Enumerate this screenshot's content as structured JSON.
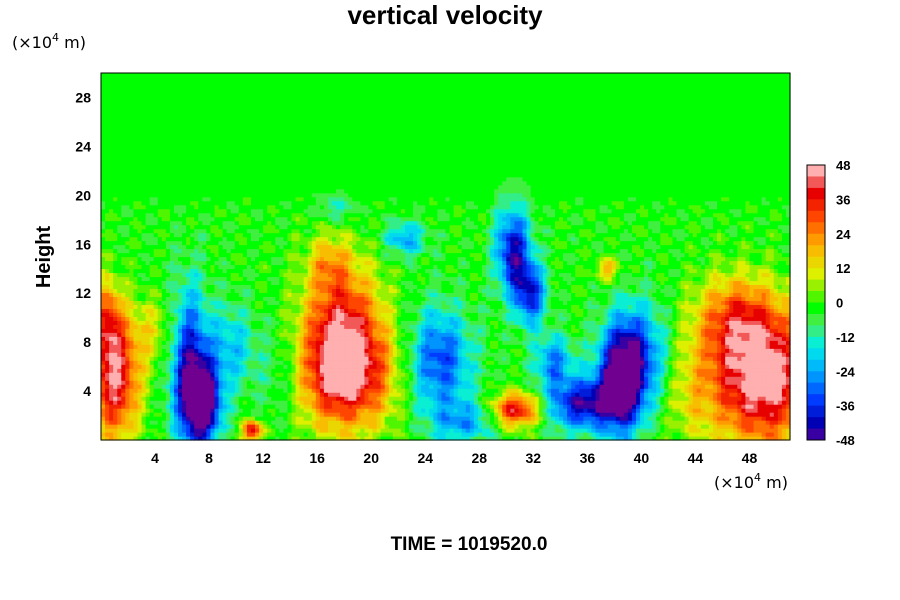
{
  "chart_data": {
    "type": "heatmap",
    "title": "vertical velocity",
    "ylabel": "Height",
    "y_unit": {
      "prefix": "(×10",
      "exponent": "4",
      "suffix": " m)"
    },
    "x_unit": {
      "prefix": "(×10",
      "exponent": "4",
      "suffix": " m)"
    },
    "xlim": [
      0,
      51
    ],
    "ylim": [
      0,
      30
    ],
    "x_ticks": [
      4,
      8,
      12,
      16,
      20,
      24,
      28,
      32,
      36,
      40,
      44,
      48
    ],
    "y_ticks": [
      4,
      8,
      12,
      16,
      20,
      24,
      28
    ],
    "colorbar": {
      "min": -48,
      "max": 48,
      "labels": [
        48,
        36,
        24,
        12,
        0,
        -12,
        -24,
        -36,
        -48
      ]
    },
    "features": [
      {
        "x": 1.0,
        "y": 5.0,
        "sx": 1.3,
        "sy": 3.5,
        "amp": 45
      },
      {
        "x": 0.5,
        "y": 10.0,
        "sx": 0.7,
        "sy": 2.2,
        "amp": 25
      },
      {
        "x": 6.5,
        "y": 6.0,
        "sx": 1.0,
        "sy": 4.5,
        "amp": -40
      },
      {
        "x": 7.6,
        "y": 3.0,
        "sx": 0.9,
        "sy": 2.2,
        "amp": -52
      },
      {
        "x": 9.5,
        "y": 7.5,
        "sx": 1.3,
        "sy": 2.5,
        "amp": -18
      },
      {
        "x": 11.2,
        "y": 0.8,
        "sx": 0.5,
        "sy": 0.6,
        "amp": 45
      },
      {
        "x": 18.0,
        "y": 5.5,
        "sx": 2.6,
        "sy": 3.2,
        "amp": 48
      },
      {
        "x": 17.8,
        "y": 10.5,
        "sx": 2.0,
        "sy": 3.5,
        "amp": 28
      },
      {
        "x": 16.8,
        "y": 14.5,
        "sx": 1.0,
        "sy": 1.5,
        "amp": 14
      },
      {
        "x": 25.0,
        "y": 6.5,
        "sx": 1.7,
        "sy": 3.0,
        "amp": -32
      },
      {
        "x": 22.5,
        "y": 16.5,
        "sx": 1.1,
        "sy": 1.0,
        "amp": -22
      },
      {
        "x": 17.5,
        "y": 19.0,
        "sx": 1.0,
        "sy": 0.8,
        "amp": -12
      },
      {
        "x": 30.7,
        "y": 2.5,
        "sx": 1.3,
        "sy": 1.0,
        "amp": 42
      },
      {
        "x": 30.5,
        "y": 15.5,
        "sx": 0.9,
        "sy": 2.5,
        "amp": -40
      },
      {
        "x": 31.8,
        "y": 12.0,
        "sx": 0.8,
        "sy": 1.8,
        "amp": -35
      },
      {
        "x": 33.5,
        "y": 6.5,
        "sx": 1.0,
        "sy": 1.5,
        "amp": -25
      },
      {
        "x": 35.5,
        "y": 3.0,
        "sx": 1.8,
        "sy": 1.5,
        "amp": -40
      },
      {
        "x": 38.5,
        "y": 5.0,
        "sx": 1.2,
        "sy": 3.0,
        "amp": -52
      },
      {
        "x": 40.0,
        "y": 7.0,
        "sx": 1.5,
        "sy": 3.0,
        "amp": -25
      },
      {
        "x": 37.5,
        "y": 14.0,
        "sx": 0.6,
        "sy": 0.6,
        "amp": 22
      },
      {
        "x": 49.0,
        "y": 5.0,
        "sx": 2.8,
        "sy": 3.8,
        "amp": 52
      },
      {
        "x": 47.0,
        "y": 10.0,
        "sx": 2.2,
        "sy": 2.5,
        "amp": 25
      },
      {
        "x": 4.0,
        "y": 9.0,
        "sx": 1.5,
        "sy": 2.0,
        "amp": 12
      },
      {
        "x": 13.5,
        "y": 5.5,
        "sx": 1.5,
        "sy": 3.0,
        "amp": -12
      },
      {
        "x": 43.5,
        "y": 4.0,
        "sx": 1.5,
        "sy": 3.0,
        "amp": 10
      },
      {
        "x": 27.0,
        "y": 1.5,
        "sx": 1.8,
        "sy": 1.2,
        "amp": -20
      }
    ]
  },
  "footer": {
    "time_label": "TIME = 1019520.0"
  }
}
